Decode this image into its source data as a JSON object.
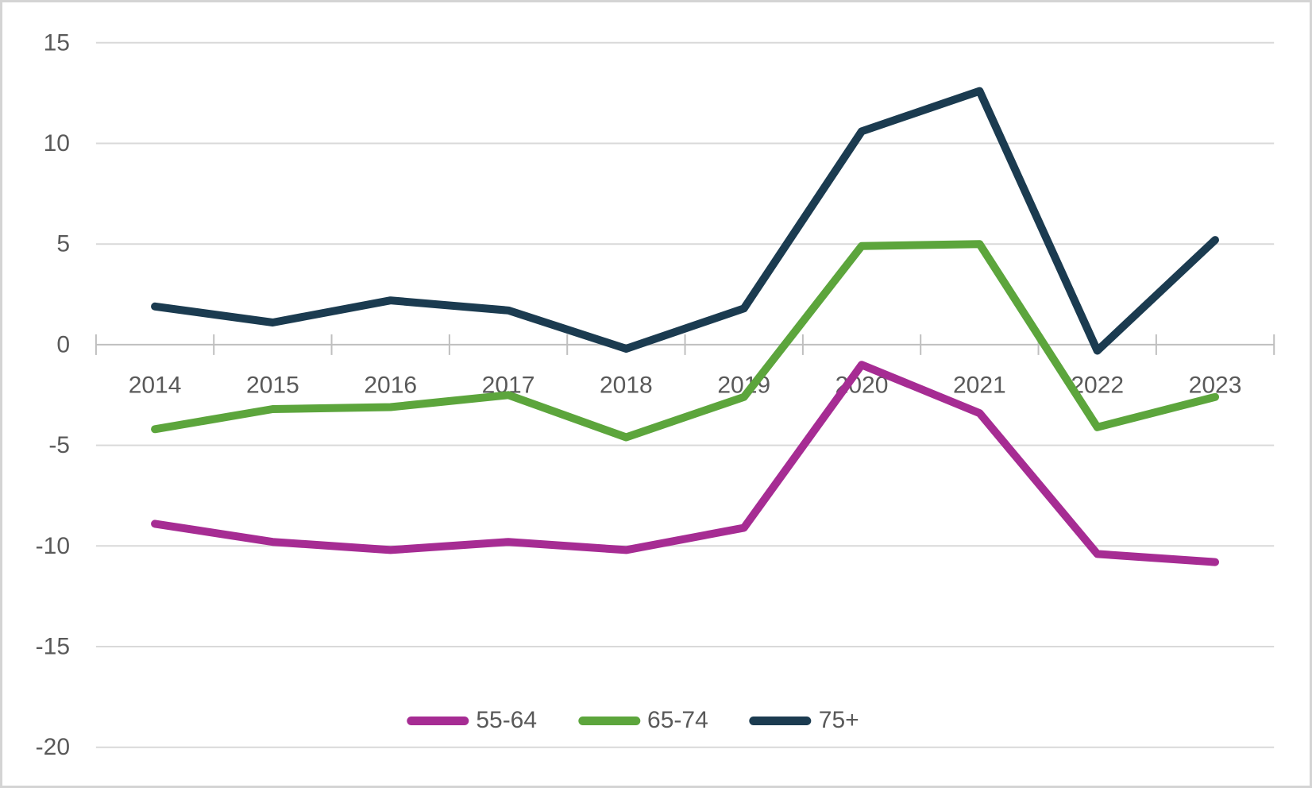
{
  "figure": {
    "background_color": "#FFFFFF",
    "border_color": "#D4D4D4"
  },
  "chart_data": {
    "type": "line",
    "title": "",
    "xlabel": "",
    "ylabel": "",
    "categories": [
      "2014",
      "2015",
      "2016",
      "2017",
      "2018",
      "2019",
      "2020",
      "2021",
      "2022",
      "2023"
    ],
    "series": [
      {
        "name": "55-64",
        "color": "#A62C93",
        "values": [
          -8.9,
          -9.8,
          -10.2,
          -9.8,
          -10.2,
          -9.1,
          -1.0,
          -3.4,
          -10.4,
          -10.8
        ]
      },
      {
        "name": "65-74",
        "color": "#5CA53C",
        "values": [
          -4.2,
          -3.2,
          -3.1,
          -2.5,
          -4.6,
          -2.6,
          4.9,
          5.0,
          -4.1,
          -2.6
        ]
      },
      {
        "name": "75+",
        "color": "#1B3B50",
        "values": [
          1.9,
          1.1,
          2.2,
          1.7,
          -0.2,
          1.8,
          10.6,
          12.6,
          -0.3,
          5.2
        ]
      }
    ],
    "ylim": [
      -20,
      15
    ],
    "yticks": [
      15,
      10,
      5,
      0,
      -5,
      -10,
      -15,
      -20
    ],
    "ytick_labels": [
      "15",
      "10",
      "5",
      "0",
      "-5",
      "-10",
      "-15",
      "-20"
    ],
    "grid": true,
    "gridline_color": "#D9D9D9",
    "axis_color": "#BFBFBF",
    "tick_label_color": "#595959",
    "legend_position": "bottom-center",
    "line_width": 10
  }
}
